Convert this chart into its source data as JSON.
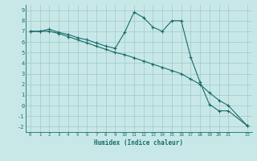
{
  "xlabel": "Humidex (Indice chaleur)",
  "background_color": "#c8e8e8",
  "grid_color": "#a0c8c8",
  "line_color": "#1a6b6b",
  "xlim": [
    -0.5,
    23.5
  ],
  "ylim": [
    -2.5,
    9.5
  ],
  "xtick_positions": [
    0,
    1,
    2,
    3,
    4,
    5,
    6,
    7,
    8,
    9,
    10,
    11,
    12,
    13,
    14,
    15,
    16,
    17,
    18,
    19,
    20,
    21,
    23
  ],
  "xtick_labels": [
    "0",
    "1",
    "2",
    "3",
    "4",
    "5",
    "6",
    "7",
    "8",
    "9",
    "10",
    "11",
    "12",
    "13",
    "14",
    "15",
    "16",
    "17",
    "18",
    "19",
    "20",
    "21",
    "23"
  ],
  "ytick_positions": [
    -2,
    -1,
    0,
    1,
    2,
    3,
    4,
    5,
    6,
    7,
    8,
    9
  ],
  "ytick_labels": [
    "-2",
    "-1",
    "0",
    "1",
    "2",
    "3",
    "4",
    "5",
    "6",
    "7",
    "8",
    "9"
  ],
  "series1_x": [
    0,
    1,
    2,
    3,
    4,
    5,
    6,
    7,
    8,
    9,
    10,
    11,
    12,
    13,
    14,
    15,
    16,
    17,
    18,
    19,
    20,
    21,
    23
  ],
  "series1_y": [
    7.0,
    7.0,
    7.2,
    6.9,
    6.7,
    6.4,
    6.2,
    5.9,
    5.6,
    5.4,
    6.9,
    8.8,
    8.3,
    7.4,
    7.0,
    8.0,
    8.0,
    4.6,
    2.2,
    0.1,
    -0.5,
    -0.5,
    -1.9
  ],
  "series2_x": [
    0,
    1,
    2,
    3,
    4,
    5,
    6,
    7,
    8,
    9,
    10,
    11,
    12,
    13,
    14,
    15,
    16,
    17,
    18,
    19,
    20,
    21,
    23
  ],
  "series2_y": [
    7.0,
    7.0,
    7.0,
    6.8,
    6.5,
    6.2,
    5.9,
    5.6,
    5.3,
    5.0,
    4.8,
    4.5,
    4.2,
    3.9,
    3.6,
    3.3,
    3.0,
    2.5,
    2.0,
    1.2,
    0.5,
    0.0,
    -1.9
  ]
}
